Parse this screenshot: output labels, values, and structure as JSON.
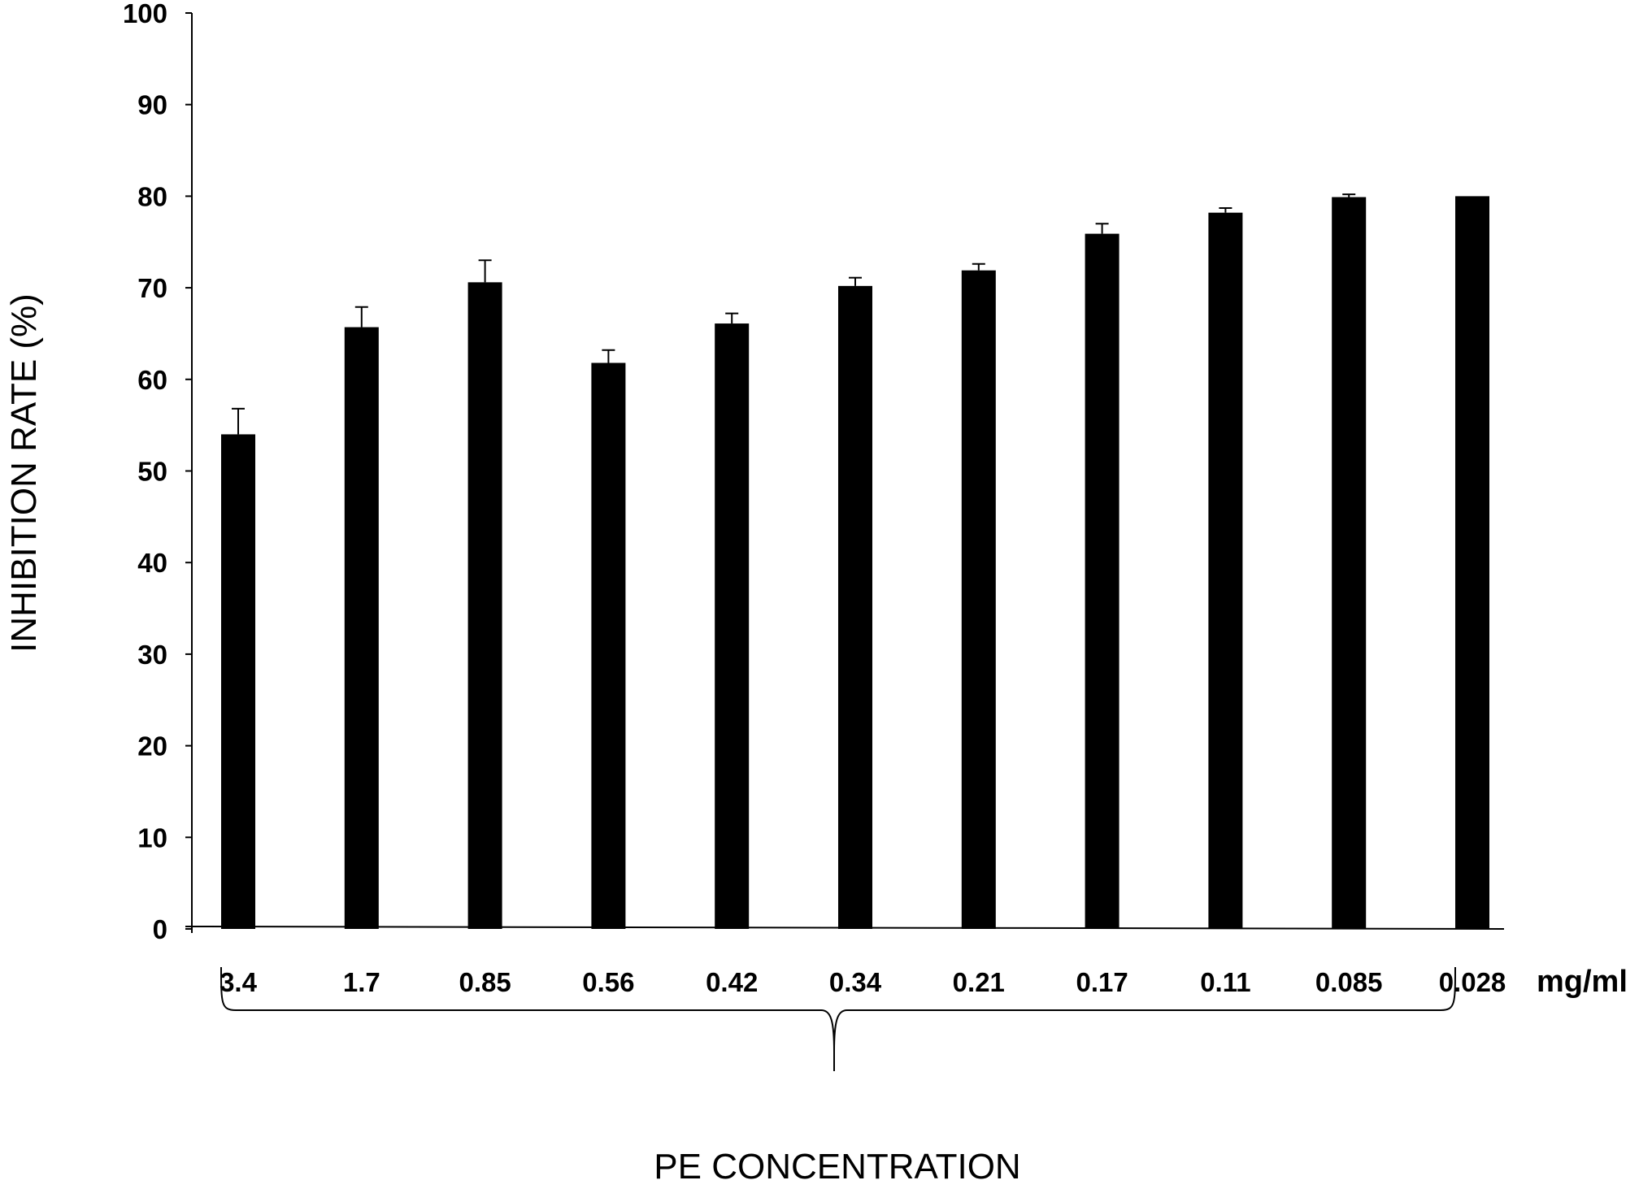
{
  "chart_data": {
    "type": "bar",
    "title": "",
    "ylabel": "INHIBITION RATE (%)",
    "xlabel": "PE CONCENTRATION",
    "x_unit": "mg/ml",
    "ylim": [
      0,
      100
    ],
    "yticks": [
      0,
      10,
      20,
      30,
      40,
      50,
      60,
      70,
      80,
      90,
      100
    ],
    "grid": false,
    "legend": "none",
    "bar_color": "#000000",
    "categories": [
      "3.4",
      "1.7",
      "0.85",
      "0.56",
      "0.42",
      "0.34",
      "0.21",
      "0.17",
      "0.11",
      "0.085",
      "0.028"
    ],
    "values": [
      54.0,
      65.7,
      70.6,
      61.8,
      66.1,
      70.2,
      71.9,
      75.9,
      78.2,
      79.9,
      80.0
    ],
    "errors": [
      2.8,
      2.2,
      2.4,
      1.4,
      1.1,
      0.9,
      0.7,
      1.1,
      0.5,
      0.3,
      0.0
    ]
  }
}
